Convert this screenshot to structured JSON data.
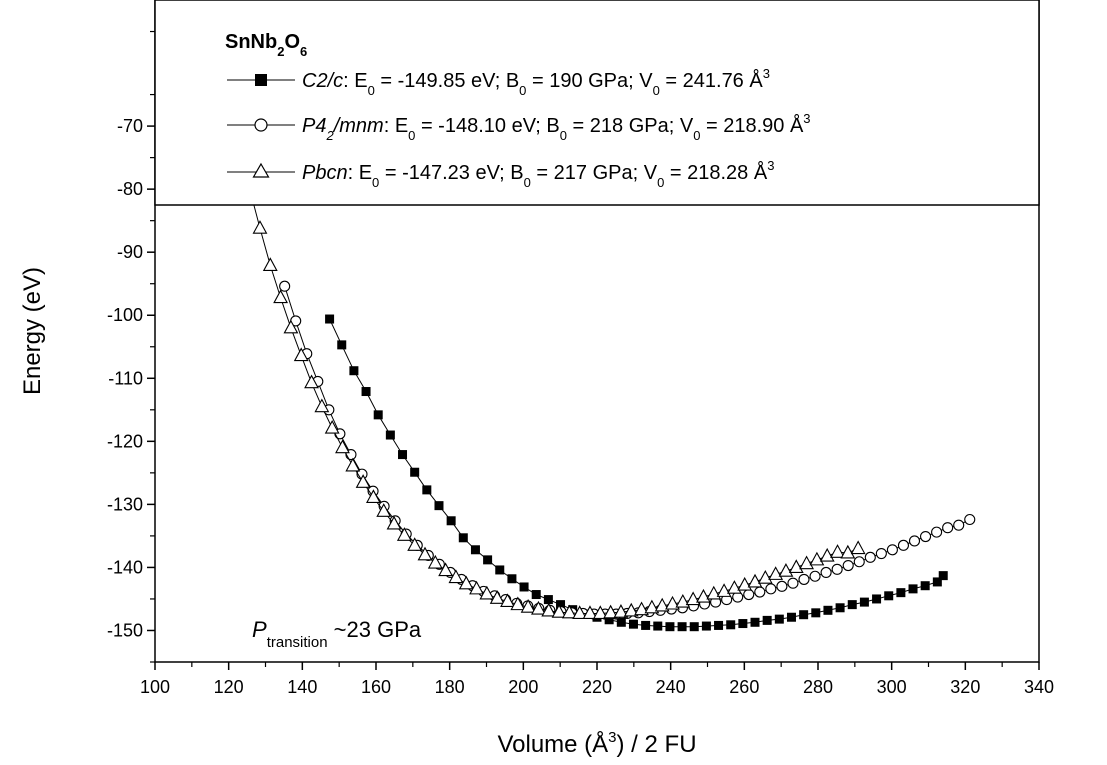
{
  "chart_data": {
    "type": "scatter",
    "xlim": [
      100,
      340
    ],
    "ylim": [
      -155,
      -50
    ],
    "x_ticks": [
      100,
      120,
      140,
      160,
      180,
      200,
      220,
      240,
      260,
      280,
      300,
      320,
      340
    ],
    "y_ticks": [
      -150,
      -140,
      -130,
      -120,
      -110,
      -100,
      -90,
      -80,
      -70
    ],
    "xlabel": {
      "pre": "Volume (Å",
      "sup": "3",
      "post": ") / 2 FU"
    },
    "ylabel": "Energy (eV)",
    "legend_placement": "top",
    "legend_title": {
      "a": "SnNb",
      "b": "2",
      "c": "O",
      "d": "6"
    },
    "legend": [
      {
        "name_italic": "C2/c",
        "rest": ": E",
        "sub1": "0",
        "mid1": " = -149.85 eV; B",
        "sub2": "0",
        "mid2": " = 190 GPa; V",
        "sub3": "0",
        "mid3": " = 241.76 Å",
        "sup": "3"
      },
      {
        "name_italic_a": "P4",
        "name_sub": "2",
        "name_italic_b": "/mnm",
        "rest": ": E",
        "sub1": "0",
        "mid1": " = -148.10 eV; B",
        "sub2": "0",
        "mid2": " = 218 GPa; V",
        "sub3": "0",
        "mid3": " = 218.90 Å",
        "sup": "3"
      },
      {
        "name_italic": "Pbcn",
        "rest": ": E",
        "sub1": "0",
        "mid1": " = -147.23 eV; B",
        "sub2": "0",
        "mid2": " = 217 GPa; V",
        "sub3": "0",
        "mid3": " = 218.28 Å",
        "sup": "3"
      }
    ],
    "annotation": {
      "p": "P",
      "sub": "transition",
      "rest": " ~23 GPa"
    },
    "series": [
      {
        "name": "C2/c",
        "marker": "filled-square",
        "x": [
          147.4,
          150.7,
          154.0,
          157.3,
          160.6,
          163.9,
          167.2,
          170.5,
          173.8,
          177.1,
          180.4,
          183.7,
          187.0,
          190.3,
          193.6,
          196.9,
          200.2,
          203.5,
          206.8,
          210.1,
          213.4,
          216.7,
          220.0,
          223.3,
          226.6,
          229.9,
          233.2,
          236.5,
          239.8,
          243.1,
          246.4,
          249.7,
          253.0,
          256.3,
          259.6,
          262.9,
          266.2,
          269.5,
          272.8,
          276.1,
          279.4,
          282.7,
          286.0,
          289.3,
          292.6,
          295.9,
          299.2,
          302.5,
          305.8,
          309.1,
          312.4,
          314.0
        ],
        "y": [
          -100.6,
          -104.7,
          -108.8,
          -112.1,
          -115.8,
          -119.0,
          -122.1,
          -124.9,
          -127.7,
          -130.2,
          -132.6,
          -135.3,
          -137.2,
          -138.8,
          -140.4,
          -141.8,
          -143.1,
          -144.3,
          -145.1,
          -145.9,
          -146.7,
          -147.4,
          -147.9,
          -148.3,
          -148.7,
          -149.0,
          -149.2,
          -149.3,
          -149.4,
          -149.4,
          -149.4,
          -149.3,
          -149.2,
          -149.1,
          -148.9,
          -148.7,
          -148.4,
          -148.2,
          -147.9,
          -147.5,
          -147.2,
          -146.8,
          -146.4,
          -145.9,
          -145.5,
          -145.0,
          -144.5,
          -144.0,
          -143.4,
          -142.9,
          -142.3,
          -141.3
        ]
      },
      {
        "name": "P42/mnm",
        "marker": "open-circle",
        "x": [
          135.2,
          138.2,
          141.2,
          144.2,
          147.2,
          150.2,
          153.2,
          156.2,
          159.2,
          162.2,
          165.2,
          168.2,
          171.2,
          174.2,
          177.2,
          180.2,
          183.2,
          186.2,
          189.2,
          192.2,
          195.2,
          198.2,
          201.2,
          204.2,
          207.2,
          210.2,
          213.2,
          216.2,
          219.2,
          222.2,
          225.2,
          228.2,
          231.2,
          234.2,
          237.2,
          240.2,
          243.2,
          246.2,
          249.2,
          252.2,
          255.2,
          258.2,
          261.2,
          264.2,
          267.2,
          270.2,
          273.2,
          276.2,
          279.2,
          282.2,
          285.2,
          288.2,
          291.2,
          294.2,
          297.2,
          300.2,
          303.2,
          306.2,
          309.2,
          312.2,
          315.2,
          318.2,
          321.2
        ],
        "y": [
          -95.4,
          -100.9,
          -106.1,
          -110.5,
          -115.0,
          -118.8,
          -122.1,
          -125.2,
          -127.9,
          -130.3,
          -132.6,
          -134.7,
          -136.5,
          -138.1,
          -139.5,
          -140.8,
          -141.9,
          -142.9,
          -143.8,
          -144.5,
          -145.1,
          -145.7,
          -146.1,
          -146.5,
          -146.8,
          -147.0,
          -147.2,
          -147.3,
          -147.4,
          -147.4,
          -147.4,
          -147.3,
          -147.2,
          -147.0,
          -146.8,
          -146.6,
          -146.4,
          -146.1,
          -145.8,
          -145.5,
          -145.1,
          -144.7,
          -144.3,
          -143.9,
          -143.4,
          -143.0,
          -142.5,
          -141.9,
          -141.4,
          -140.8,
          -140.3,
          -139.7,
          -139.1,
          -138.4,
          -137.8,
          -137.2,
          -136.5,
          -135.8,
          -135.1,
          -134.4,
          -133.7,
          -133.3,
          -132.4
        ]
      },
      {
        "name": "Pbcn",
        "marker": "open-triangle",
        "x": [
          125.7,
          128.5,
          131.3,
          134.1,
          136.9,
          139.7,
          142.5,
          145.3,
          148.1,
          150.9,
          153.7,
          156.5,
          159.3,
          162.1,
          164.9,
          167.7,
          170.5,
          173.3,
          176.1,
          178.9,
          181.7,
          184.5,
          187.3,
          190.1,
          192.9,
          195.7,
          198.5,
          201.3,
          204.1,
          206.9,
          209.7,
          212.5,
          215.3,
          218.1,
          220.9,
          223.7,
          226.5,
          229.3,
          232.1,
          234.9,
          237.7,
          240.5,
          243.3,
          246.1,
          248.9,
          251.7,
          254.5,
          257.3,
          260.1,
          262.9,
          265.7,
          268.5,
          271.3,
          274.1,
          276.9,
          279.7,
          282.5,
          285.3,
          288.1,
          290.9
        ],
        "y": [
          -80.0,
          -86.2,
          -92.1,
          -97.2,
          -102.0,
          -106.4,
          -110.7,
          -114.5,
          -117.9,
          -121.0,
          -123.9,
          -126.5,
          -128.9,
          -131.1,
          -133.1,
          -134.9,
          -136.5,
          -138.0,
          -139.3,
          -140.5,
          -141.6,
          -142.6,
          -143.4,
          -144.2,
          -144.9,
          -145.4,
          -145.9,
          -146.3,
          -146.6,
          -146.9,
          -147.1,
          -147.2,
          -147.3,
          -147.3,
          -147.3,
          -147.2,
          -147.1,
          -146.9,
          -146.7,
          -146.4,
          -146.1,
          -145.8,
          -145.5,
          -145.1,
          -144.7,
          -144.2,
          -143.8,
          -143.3,
          -142.8,
          -142.3,
          -141.7,
          -141.1,
          -140.6,
          -140.0,
          -139.4,
          -138.8,
          -138.2,
          -137.6,
          -137.7,
          -137.0
        ]
      }
    ]
  }
}
